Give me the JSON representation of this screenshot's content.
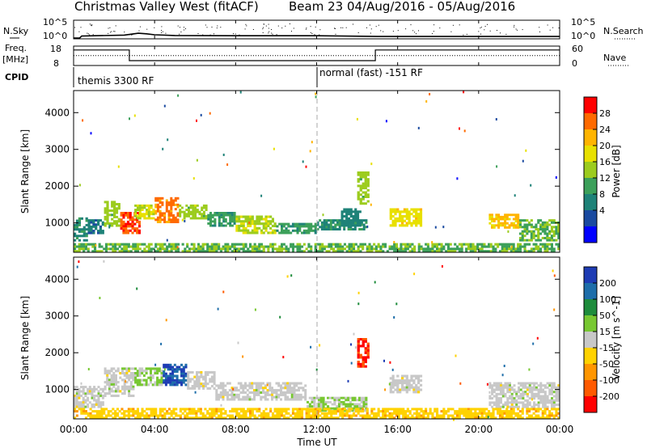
{
  "header": {
    "title_left": "Christmas Valley West (fitACF)",
    "title_right": "Beam 23 04/Aug/2016 - 05/Aug/2016"
  },
  "panels": {
    "nsky": {
      "left_label": "N.Sky",
      "right_label": "N.Search",
      "left_ticks": [
        "10^5",
        "10^0"
      ],
      "right_ticks": [
        "10^5",
        "10^0"
      ]
    },
    "freq": {
      "left_label_1": "Freq.",
      "left_label_2": "[MHz]",
      "right_label": "Nave",
      "left_ticks": [
        "18",
        "8"
      ],
      "right_ticks": [
        "60",
        "0"
      ]
    },
    "cpid": {
      "label": "CPID",
      "modes": [
        "themis 3300 RF",
        "normal (fast) -151 RF"
      ]
    }
  },
  "ylabel": "Slant Range [km]",
  "y_ticks": [
    "4000",
    "3000",
    "2000",
    "1000"
  ],
  "x_ticks": [
    "00:00",
    "04:00",
    "08:00",
    "12:00",
    "16:00",
    "20:00",
    "00:00"
  ],
  "xlabel": "Time UT",
  "colorbars": {
    "power": {
      "label": "Power [dB]",
      "ticks": [
        "28",
        "24",
        "20",
        "16",
        "12",
        "8",
        "4"
      ],
      "colors": [
        "#ff0000",
        "#ff6a00",
        "#ffb400",
        "#e8e000",
        "#9ccc1e",
        "#3ca05a",
        "#1e8278",
        "#1a4aa0",
        "#0000ff"
      ]
    },
    "velocity": {
      "label": "Velocity [m s^-1]",
      "ticks": [
        "200",
        "100",
        "50",
        "15",
        "-15",
        "-50",
        "-100",
        "-200"
      ],
      "colors": [
        "#1e3cb4",
        "#1e6eaa",
        "#1e8c3c",
        "#78c832",
        "#c8c8c8",
        "#ffd200",
        "#ff9600",
        "#ff5a00",
        "#ff0000"
      ]
    }
  },
  "chart_data": [
    {
      "type": "line",
      "title": "N.Sky / N.Search",
      "x_unit": "hours UT",
      "series": [
        {
          "name": "N.Sky",
          "x": [
            0,
            0.3,
            0.4,
            2.5,
            3.2,
            3.6,
            4.0,
            5.0,
            8.0,
            12.0,
            15.0,
            19.0,
            23.5,
            24.0
          ],
          "y": [
            1,
            1,
            4,
            8,
            30,
            20,
            10,
            6,
            5,
            5,
            3,
            3,
            3,
            3
          ]
        }
      ]
    },
    {
      "type": "line",
      "title": "Freq. [MHz] / Nave",
      "x_unit": "hours UT",
      "series": [
        {
          "name": "Freq.",
          "x": [
            0,
            2.75,
            2.75,
            14.9,
            14.9,
            24.0
          ],
          "y": [
            16,
            16,
            10.5,
            10.5,
            16,
            16
          ]
        },
        {
          "name": "Nave",
          "x": [
            0,
            2.75,
            2.75,
            14.9,
            14.9,
            24.0
          ],
          "y": [
            16,
            16,
            16,
            16,
            16,
            16
          ]
        }
      ],
      "ylim": [
        8,
        18
      ]
    },
    {
      "type": "heatmap",
      "title": "Power [dB]",
      "xlabel": "Time UT",
      "ylabel": "Slant Range [km]",
      "xlim": [
        0,
        24
      ],
      "ylim": [
        200,
        4600
      ],
      "clim": [
        0,
        32
      ],
      "blobs": [
        {
          "t0": 0.0,
          "t1": 0.7,
          "r0": 500,
          "r1": 1150,
          "v": 10
        },
        {
          "t0": 0.7,
          "t1": 1.5,
          "r0": 700,
          "r1": 1100,
          "v": 8
        },
        {
          "t0": 1.5,
          "t1": 2.3,
          "r0": 900,
          "r1": 1600,
          "v": 16
        },
        {
          "t0": 2.3,
          "t1": 3.3,
          "r0": 700,
          "r1": 1300,
          "v": 28
        },
        {
          "t0": 3.0,
          "t1": 4.0,
          "r0": 1100,
          "r1": 1500,
          "v": 18
        },
        {
          "t0": 4.0,
          "t1": 5.2,
          "r0": 1000,
          "r1": 1700,
          "v": 26
        },
        {
          "t0": 5.2,
          "t1": 6.6,
          "r0": 1100,
          "r1": 1500,
          "v": 16
        },
        {
          "t0": 6.6,
          "t1": 8.0,
          "r0": 900,
          "r1": 1300,
          "v": 12
        },
        {
          "t0": 8.0,
          "t1": 10.0,
          "r0": 700,
          "r1": 1200,
          "v": 17
        },
        {
          "t0": 10.0,
          "t1": 12.0,
          "r0": 700,
          "r1": 1000,
          "v": 12
        },
        {
          "t0": 12.0,
          "t1": 14.5,
          "r0": 800,
          "r1": 1100,
          "v": 10
        },
        {
          "t0": 13.2,
          "t1": 14.2,
          "r0": 900,
          "r1": 1400,
          "v": 9
        },
        {
          "t0": 14.0,
          "t1": 14.6,
          "r0": 1500,
          "r1": 2400,
          "v": 16
        },
        {
          "t0": 15.6,
          "t1": 17.2,
          "r0": 900,
          "r1": 1400,
          "v": 20
        },
        {
          "t0": 20.5,
          "t1": 22.0,
          "r0": 850,
          "r1": 1250,
          "v": 22
        },
        {
          "t0": 22.0,
          "t1": 24.0,
          "r0": 500,
          "r1": 1100,
          "v": 14
        },
        {
          "t0": 0.0,
          "t1": 24.0,
          "r0": 200,
          "r1": 450,
          "v": 14
        }
      ]
    },
    {
      "type": "heatmap",
      "title": "Velocity [m s^-1]",
      "xlabel": "Time UT",
      "ylabel": "Slant Range [km]",
      "xlim": [
        0,
        24
      ],
      "ylim": [
        200,
        4600
      ],
      "clim": [
        -250,
        250
      ],
      "blobs": [
        {
          "t0": 0.0,
          "t1": 1.5,
          "r0": 500,
          "r1": 1100,
          "v": 0
        },
        {
          "t0": 1.5,
          "t1": 3.0,
          "r0": 800,
          "r1": 1600,
          "v": 0
        },
        {
          "t0": 3.0,
          "t1": 4.4,
          "r0": 1100,
          "r1": 1600,
          "v": 40
        },
        {
          "t0": 4.4,
          "t1": 5.6,
          "r0": 1100,
          "r1": 1700,
          "v": 200
        },
        {
          "t0": 5.6,
          "t1": 7.0,
          "r0": 1000,
          "r1": 1500,
          "v": 0
        },
        {
          "t0": 7.0,
          "t1": 11.5,
          "r0": 700,
          "r1": 1200,
          "v": 0
        },
        {
          "t0": 11.5,
          "t1": 14.5,
          "r0": 400,
          "r1": 800,
          "v": 30
        },
        {
          "t0": 14.0,
          "t1": 14.6,
          "r0": 1600,
          "r1": 2400,
          "v": -200
        },
        {
          "t0": 15.6,
          "t1": 17.2,
          "r0": 900,
          "r1": 1400,
          "v": 0
        },
        {
          "t0": 20.5,
          "t1": 24.0,
          "r0": 500,
          "r1": 1200,
          "v": 0
        },
        {
          "t0": 0.0,
          "t1": 24.0,
          "r0": 200,
          "r1": 500,
          "v": -60
        }
      ]
    }
  ]
}
